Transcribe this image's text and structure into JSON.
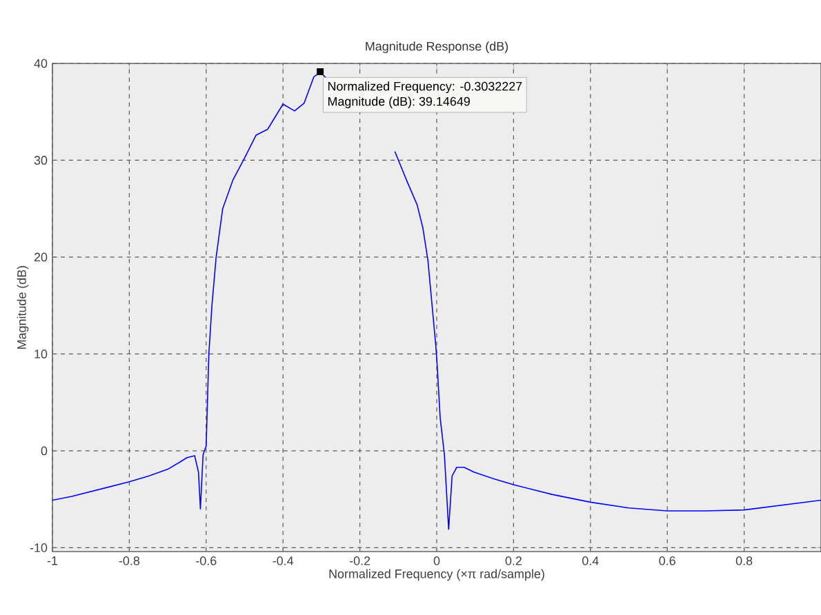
{
  "chart_data": {
    "type": "line",
    "title": "Magnitude Response (dB)",
    "xlabel": "Normalized Frequency (×π rad/sample)",
    "ylabel": "Magnitude (dB)",
    "x": [
      -1,
      -0.95,
      -0.9,
      -0.85,
      -0.8,
      -0.75,
      -0.7,
      -0.67,
      -0.65,
      -0.63,
      -0.62,
      -0.615,
      -0.608,
      -0.6,
      -0.593,
      -0.585,
      -0.574,
      -0.557,
      -0.53,
      -0.503,
      -0.47,
      -0.44,
      -0.4,
      -0.37,
      -0.345,
      -0.32,
      -0.3032227,
      -0.285,
      -0.27,
      -0.109,
      -0.077,
      -0.051,
      -0.036,
      -0.023,
      -0.013,
      -0.003,
      0.0,
      0.009,
      0.02,
      0.024,
      0.031,
      0.04,
      0.052,
      0.071,
      0.097,
      0.15,
      0.2,
      0.3,
      0.4,
      0.5,
      0.6,
      0.7,
      0.8,
      0.9,
      1.0
    ],
    "series": [
      {
        "color": "#0000ff",
        "values": [
          -5.1,
          -4.7,
          -4.2,
          -3.7,
          -3.2,
          -2.6,
          -1.9,
          -1.2,
          -0.7,
          -0.5,
          -2.2,
          -6,
          -0.4,
          0.5,
          10,
          15,
          20,
          25,
          28,
          30,
          32.6,
          33.2,
          35.8,
          35.1,
          35.9,
          38.6,
          39.1,
          38.4,
          null,
          30.9,
          27.8,
          25.4,
          23,
          19.7,
          15.4,
          11.1,
          9.6,
          3.4,
          -0.4,
          -3.2,
          -8.1,
          -2.6,
          -1.7,
          -1.7,
          -2.2,
          -2.9,
          -3.5,
          -4.5,
          -5.3,
          -5.9,
          -6.2,
          -6.2,
          -6.1,
          -5.6,
          -5.1
        ]
      }
    ],
    "xlim": [
      -1,
      1
    ],
    "ylim": [
      -10.4,
      40
    ],
    "xticks": [
      -1,
      -0.8,
      -0.6,
      -0.4,
      -0.2,
      0,
      0.2,
      0.4,
      0.6,
      0.8
    ],
    "yticks": [
      -10,
      0,
      10,
      20,
      30,
      40
    ],
    "grid": true,
    "annotations": [
      {
        "text": "Normalized Frequency: -0.3032227",
        "x": -0.3032227,
        "y": 39.14649
      },
      "Magnitude (dB): 39.14649"
    ]
  }
}
